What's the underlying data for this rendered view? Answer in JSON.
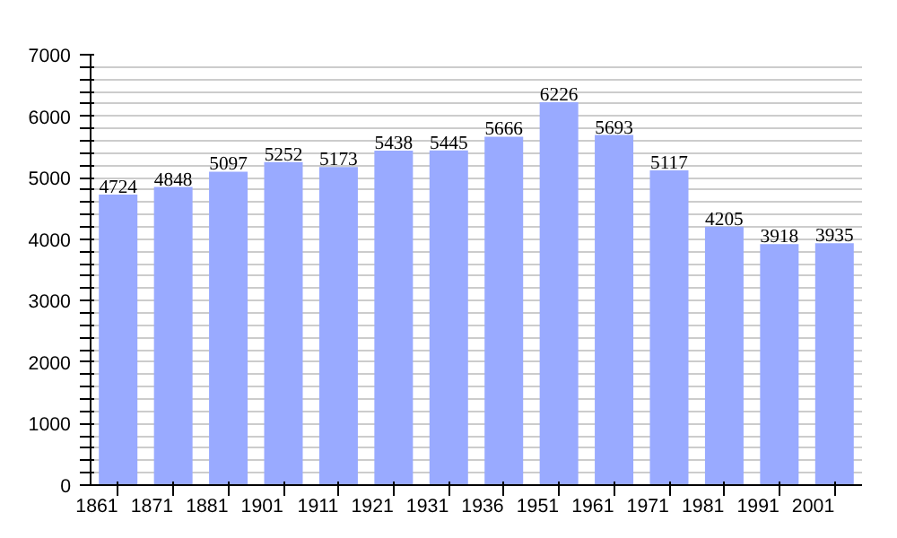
{
  "chart_data": {
    "type": "bar",
    "categories": [
      "1861",
      "1871",
      "1881",
      "1901",
      "1911",
      "1921",
      "1931",
      "1936",
      "1951",
      "1961",
      "1971",
      "1981",
      "1991",
      "2001"
    ],
    "values": [
      4724,
      4848,
      5097,
      5252,
      5173,
      5438,
      5445,
      5666,
      6226,
      5693,
      5117,
      4205,
      3918,
      3935
    ],
    "color": "#99aaff",
    "data_labels": true,
    "grid": "y",
    "ylim": [
      0,
      7000
    ],
    "yticks": [
      0,
      {
        "value": 200,
        "label": null
      },
      {
        "value": 400,
        "label": null
      },
      {
        "value": 600,
        "label": null
      },
      {
        "value": 800,
        "label": null
      },
      1000,
      {
        "value": 1200,
        "label": null
      },
      {
        "value": 1400,
        "label": null
      },
      {
        "value": 1600,
        "label": null
      },
      {
        "value": 1800,
        "label": null
      },
      2000,
      {
        "value": 2200,
        "label": null
      },
      {
        "value": 2400,
        "label": null
      },
      {
        "value": 2600,
        "label": null
      },
      {
        "value": 2800,
        "label": null
      },
      3000,
      {
        "value": 3200,
        "label": null
      },
      {
        "value": 3400,
        "label": null
      },
      {
        "value": 3600,
        "label": null
      },
      {
        "value": 3800,
        "label": null
      },
      4000,
      {
        "value": 4200,
        "label": null
      },
      {
        "value": 4400,
        "label": null
      },
      {
        "value": 4600,
        "label": null
      },
      {
        "value": 4800,
        "label": null
      },
      5000,
      {
        "value": 5200,
        "label": null
      },
      {
        "value": 5400,
        "label": null
      },
      {
        "value": 5600,
        "label": null
      },
      {
        "value": 5800,
        "label": null
      },
      6000,
      {
        "value": 6200,
        "label": null
      },
      {
        "value": 6400,
        "label": null
      },
      {
        "value": 6600,
        "label": null
      },
      {
        "value": 6800,
        "label": null
      },
      7000
    ]
  }
}
